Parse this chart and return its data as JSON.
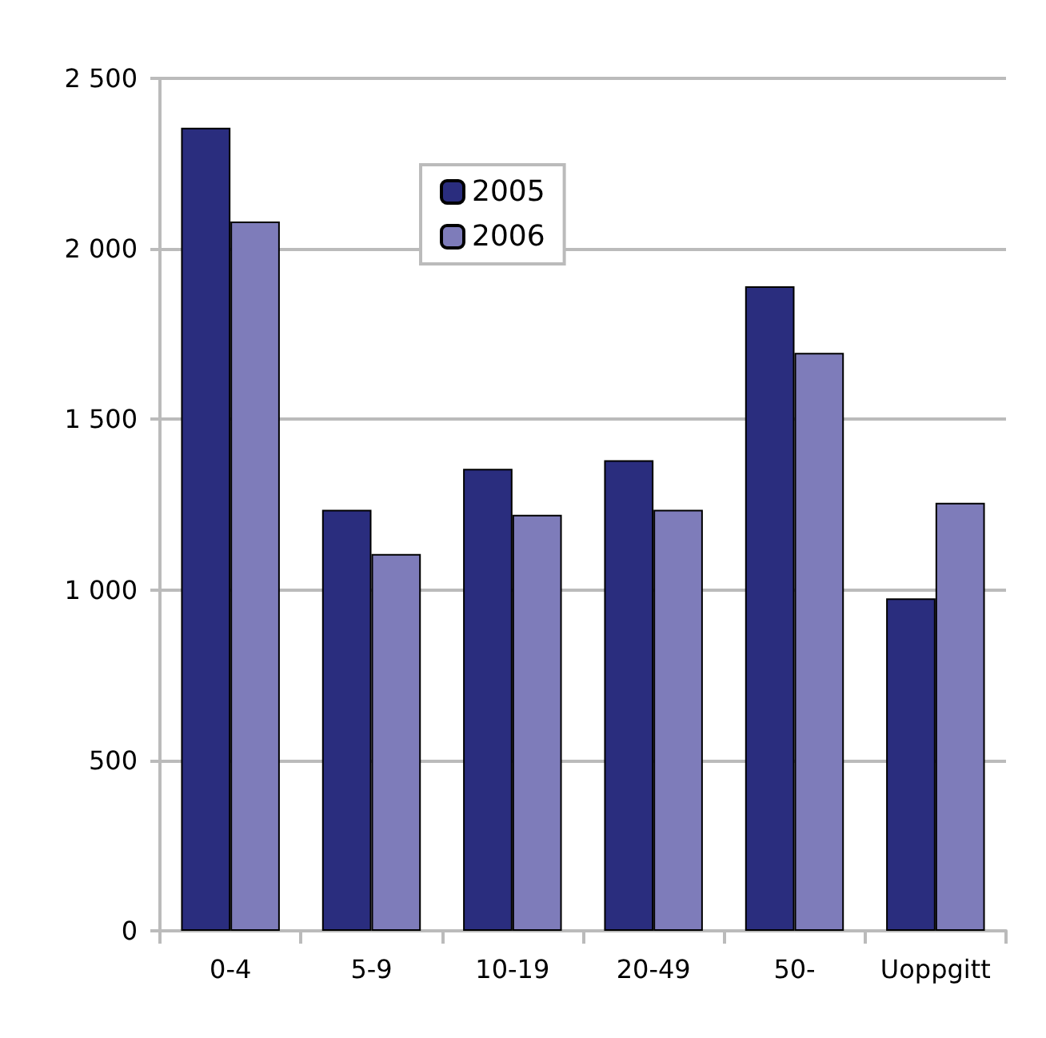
{
  "chart_data": {
    "type": "bar",
    "categories": [
      "0-4",
      "5-9",
      "10-19",
      "20-49",
      "50-",
      "Uoppgitt"
    ],
    "series": [
      {
        "name": "2005",
        "color": "#2a2d7e",
        "values": [
          2355,
          1235,
          1355,
          1380,
          1890,
          975
        ]
      },
      {
        "name": "2006",
        "color": "#7e7cba",
        "values": [
          2080,
          1105,
          1220,
          1235,
          1695,
          1255
        ]
      }
    ],
    "ylim": [
      0,
      2500
    ],
    "yticks": [
      0,
      500,
      {
        "value": 1000,
        "label": "1 000"
      },
      {
        "value": 1500,
        "label": "1 500"
      },
      {
        "value": 2000,
        "label": "2 000"
      },
      {
        "value": 2500,
        "label": "2 500"
      }
    ],
    "grid": "y",
    "legend": "top"
  }
}
